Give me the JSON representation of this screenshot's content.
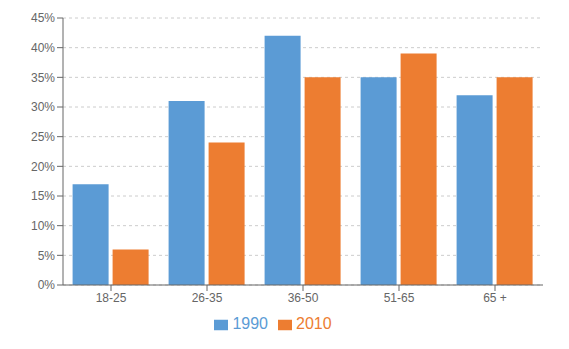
{
  "chart_data": {
    "type": "bar",
    "categories": [
      "18-25",
      "26-35",
      "36-50",
      "51-65",
      "65 +"
    ],
    "series": [
      {
        "name": "1990",
        "color": "#5B9BD5",
        "values": [
          0.17,
          0.31,
          0.42,
          0.35,
          0.32
        ]
      },
      {
        "name": "2010",
        "color": "#ED7D31",
        "values": [
          0.06,
          0.24,
          0.35,
          0.39,
          0.35
        ]
      }
    ],
    "ylim": [
      0,
      0.45
    ],
    "yticks": [
      {
        "value": 0.0,
        "label": "0%"
      },
      {
        "value": 0.05,
        "label": "5%"
      },
      {
        "value": 0.1,
        "label": "10%"
      },
      {
        "value": 0.15,
        "label": "15%"
      },
      {
        "value": 0.2,
        "label": "20%"
      },
      {
        "value": 0.25,
        "label": "25%"
      },
      {
        "value": 0.3,
        "label": "30%"
      },
      {
        "value": 0.35,
        "label": "35%"
      },
      {
        "value": 0.4,
        "label": "40%"
      },
      {
        "value": 0.45,
        "label": "45%"
      }
    ],
    "grid": true,
    "legend": "bottom"
  }
}
